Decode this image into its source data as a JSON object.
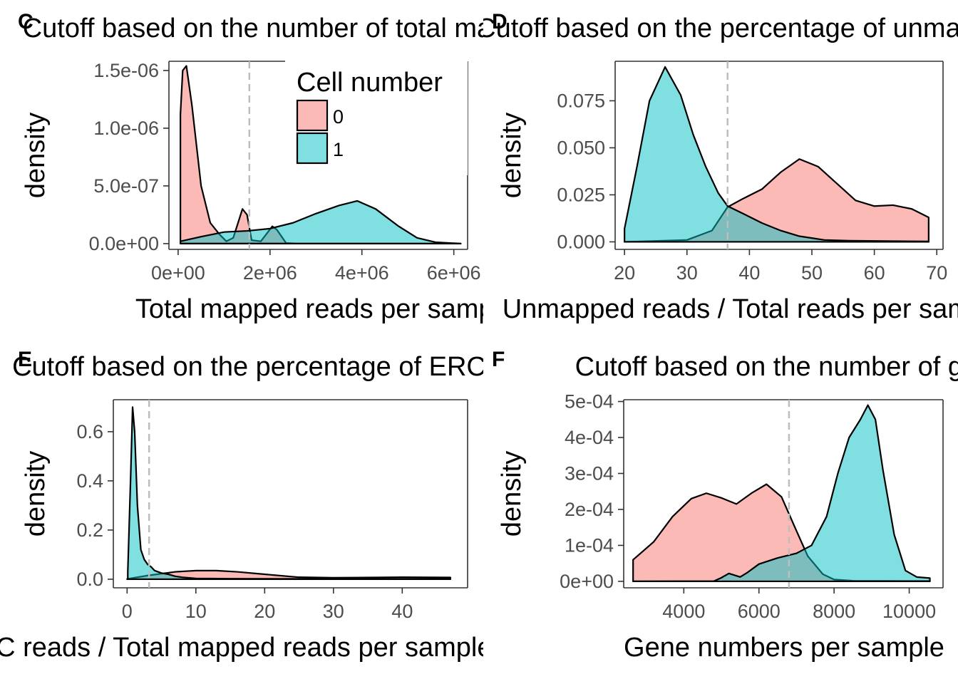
{
  "legend": {
    "title": "Cell number",
    "entries": [
      {
        "label": "0",
        "color": "#F8766D"
      },
      {
        "label": "1",
        "color": "#00BFC4"
      }
    ]
  },
  "chart_data": [
    {
      "panel": "C",
      "type": "area",
      "title": "Cutoff based on the number of total mapped reads",
      "xlabel": "Total mapped reads per sample",
      "ylabel": "density",
      "xlim": [
        -200000,
        6300000
      ],
      "ylim": [
        -5e-08,
        1.58e-06
      ],
      "xticks": [
        0,
        2000000,
        4000000,
        6000000
      ],
      "xtick_labels": [
        "0e+00",
        "2e+06",
        "4e+06",
        "6e+06"
      ],
      "yticks": [
        0,
        5e-07,
        1e-06,
        1.5e-06
      ],
      "ytick_labels": [
        "0.0e+00",
        "5.0e-07",
        "1.0e-06",
        "1.5e-06"
      ],
      "cutoff": 1550000,
      "legend": "inside top",
      "series": [
        {
          "name": "0",
          "points": [
            [
              50000,
              1.12e-06
            ],
            [
              100000,
              1.5e-06
            ],
            [
              180000,
              1.54e-06
            ],
            [
              300000,
              1.2e-06
            ],
            [
              500000,
              5e-07
            ],
            [
              700000,
              1.8e-07
            ],
            [
              900000,
              8e-08
            ],
            [
              1050000,
              2e-08
            ],
            [
              1200000,
              5e-08
            ],
            [
              1400000,
              3e-07
            ],
            [
              1500000,
              2.5e-07
            ],
            [
              1600000,
              3e-08
            ],
            [
              1800000,
              2e-08
            ],
            [
              2050000,
              1.5e-07
            ],
            [
              2150000,
              1.2e-07
            ],
            [
              2350000,
              5e-09
            ],
            [
              2600000,
              0.0
            ],
            [
              6150000,
              0.0
            ]
          ]
        },
        {
          "name": "1",
          "points": [
            [
              50000,
              2e-08
            ],
            [
              500000,
              6e-08
            ],
            [
              1000000,
              1e-07
            ],
            [
              1500000,
              1.1e-07
            ],
            [
              2000000,
              1.3e-07
            ],
            [
              2500000,
              1.8e-07
            ],
            [
              3000000,
              2.6e-07
            ],
            [
              3500000,
              3.3e-07
            ],
            [
              3900000,
              3.7e-07
            ],
            [
              4300000,
              3e-07
            ],
            [
              4800000,
              1.5e-07
            ],
            [
              5200000,
              5e-08
            ],
            [
              5600000,
              1.2e-08
            ],
            [
              6150000,
              0.0
            ]
          ]
        }
      ]
    },
    {
      "panel": "D",
      "type": "area",
      "title": "Cutoff based on the percentage of unmapped reads",
      "xlabel": "Unmapped reads / Total reads per sample (%)",
      "ylabel": "density",
      "xlim": [
        18.5,
        71
      ],
      "ylim": [
        -0.004,
        0.096
      ],
      "xticks": [
        20,
        30,
        40,
        50,
        60,
        70
      ],
      "xtick_labels": [
        "20",
        "30",
        "40",
        "50",
        "60",
        "70"
      ],
      "yticks": [
        0,
        0.025,
        0.05,
        0.075
      ],
      "ytick_labels": [
        "0.000",
        "0.025",
        "0.050",
        "0.075"
      ],
      "cutoff": 36.5,
      "series": [
        {
          "name": "0",
          "points": [
            [
              20,
              0
            ],
            [
              30,
              0.001
            ],
            [
              34,
              0.006
            ],
            [
              36.5,
              0.0185
            ],
            [
              39,
              0.023
            ],
            [
              42,
              0.028
            ],
            [
              45,
              0.037
            ],
            [
              48,
              0.044
            ],
            [
              51,
              0.04
            ],
            [
              54,
              0.031
            ],
            [
              57,
              0.022
            ],
            [
              60,
              0.019
            ],
            [
              63,
              0.0195
            ],
            [
              66,
              0.0175
            ],
            [
              68.7,
              0.013
            ],
            [
              68.7,
              0
            ]
          ]
        },
        {
          "name": "1",
          "points": [
            [
              20,
              0.007
            ],
            [
              22,
              0.04
            ],
            [
              24,
              0.075
            ],
            [
              26.5,
              0.093
            ],
            [
              29,
              0.078
            ],
            [
              31,
              0.057
            ],
            [
              33,
              0.04
            ],
            [
              35,
              0.026
            ],
            [
              36.5,
              0.019
            ],
            [
              39,
              0.015
            ],
            [
              42,
              0.01
            ],
            [
              45,
              0.006
            ],
            [
              48,
              0.003
            ],
            [
              52,
              0.001
            ],
            [
              56,
              0.0006
            ],
            [
              62,
              0.0004
            ],
            [
              68.7,
              0.0002
            ]
          ]
        }
      ]
    },
    {
      "panel": "E",
      "type": "area",
      "title": "Cutoff based on the percentage of ERCC reads",
      "xlabel": "ERCC reads / Total mapped reads per sample (%)",
      "ylabel": "density",
      "xlim": [
        -2,
        49.5
      ],
      "ylim": [
        -0.035,
        0.73
      ],
      "xticks": [
        0,
        10,
        20,
        30,
        40
      ],
      "xtick_labels": [
        "0",
        "10",
        "20",
        "30",
        "40"
      ],
      "yticks": [
        0,
        0.2,
        0.4,
        0.6
      ],
      "ytick_labels": [
        "0.0",
        "0.2",
        "0.4",
        "0.6"
      ],
      "cutoff": 3.2,
      "series": [
        {
          "name": "0",
          "points": [
            [
              0,
              0.001
            ],
            [
              3,
              0.015
            ],
            [
              7,
              0.03
            ],
            [
              10,
              0.035
            ],
            [
              13,
              0.035
            ],
            [
              16,
              0.03
            ],
            [
              20,
              0.02
            ],
            [
              25,
              0.008
            ],
            [
              30,
              0.006
            ],
            [
              40,
              0.008
            ],
            [
              47,
              0.007
            ]
          ]
        },
        {
          "name": "1",
          "points": [
            [
              0.1,
              0.03
            ],
            [
              0.5,
              0.4
            ],
            [
              0.8,
              0.7
            ],
            [
              1.1,
              0.6
            ],
            [
              1.5,
              0.3
            ],
            [
              2.0,
              0.12
            ],
            [
              2.5,
              0.08
            ],
            [
              3,
              0.06
            ],
            [
              3.5,
              0.05
            ],
            [
              4,
              0.035
            ],
            [
              4.5,
              0.03
            ],
            [
              5,
              0.025
            ],
            [
              6,
              0.02
            ],
            [
              7,
              0.012
            ],
            [
              8,
              0.008
            ],
            [
              10,
              0.003
            ],
            [
              15,
              0.002
            ],
            [
              47,
              0.001
            ]
          ]
        }
      ]
    },
    {
      "panel": "F",
      "type": "area",
      "title": "Cutoff based on the number of genes",
      "xlabel": "Gene numbers per sample",
      "ylabel": "density",
      "xlim": [
        2400,
        10900
      ],
      "ylim": [
        -1.8e-05,
        0.000505
      ],
      "xticks": [
        4000,
        6000,
        8000,
        10000
      ],
      "xtick_labels": [
        "4000",
        "6000",
        "8000",
        "10000"
      ],
      "yticks": [
        0,
        0.0001,
        0.0002,
        0.0003,
        0.0004,
        0.0005
      ],
      "ytick_labels": [
        "0e+00",
        "1e-04",
        "2e-04",
        "3e-04",
        "4e-04",
        "5e-04"
      ],
      "cutoff": 6800,
      "series": [
        {
          "name": "0",
          "points": [
            [
              2650,
              6e-05
            ],
            [
              3200,
              0.00011
            ],
            [
              3700,
              0.00018
            ],
            [
              4200,
              0.00023
            ],
            [
              4600,
              0.000245
            ],
            [
              5000,
              0.000232
            ],
            [
              5400,
              0.000215
            ],
            [
              5800,
              0.000245
            ],
            [
              6200,
              0.00027
            ],
            [
              6600,
              0.000235
            ],
            [
              7000,
              0.00014
            ],
            [
              7300,
              7e-05
            ],
            [
              7700,
              2e-05
            ],
            [
              8000,
              5e-06
            ],
            [
              8500,
              1.5e-06
            ],
            [
              10550,
              1e-06
            ],
            [
              10550,
              0
            ]
          ]
        },
        {
          "name": "1",
          "points": [
            [
              2650,
              0
            ],
            [
              4800,
              5e-07
            ],
            [
              5000,
              1e-05
            ],
            [
              5200,
              2.2e-05
            ],
            [
              5500,
              1.2e-05
            ],
            [
              5700,
              2.5e-05
            ],
            [
              6000,
              4.8e-05
            ],
            [
              6500,
              6.5e-05
            ],
            [
              7000,
              7.8e-05
            ],
            [
              7400,
              0.0001
            ],
            [
              7800,
              0.00018
            ],
            [
              8100,
              0.0003
            ],
            [
              8400,
              0.0004
            ],
            [
              8700,
              0.00045
            ],
            [
              8900,
              0.00049
            ],
            [
              9100,
              0.00045
            ],
            [
              9300,
              0.00031
            ],
            [
              9600,
              0.00013
            ],
            [
              9900,
              3e-05
            ],
            [
              10200,
              1.2e-05
            ],
            [
              10550,
              9e-06
            ],
            [
              10550,
              0
            ]
          ]
        }
      ]
    }
  ]
}
